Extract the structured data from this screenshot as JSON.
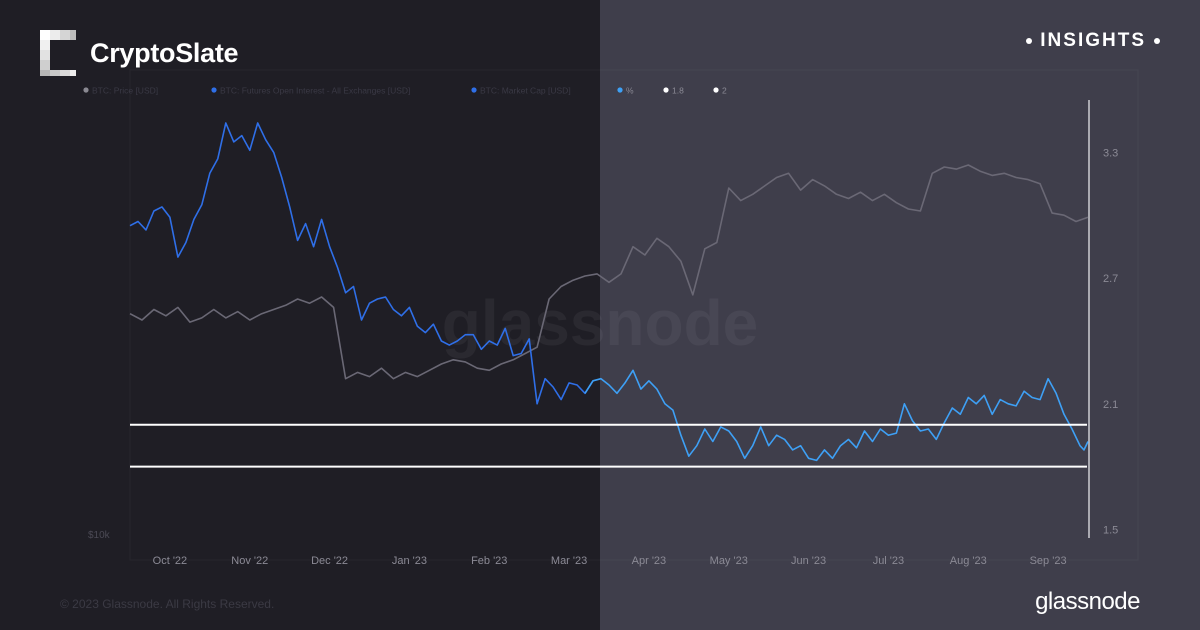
{
  "brand": {
    "name": "CryptoSlate",
    "badge": "INSIGHTS"
  },
  "footer": {
    "copyright": "© 2023 Glassnode. All Rights Reserved.",
    "logo": "glassnode"
  },
  "watermark": "glassnode",
  "colors": {
    "price": "#6a6875",
    "oi_dark": "#2f6fe8",
    "oi_light": "#3ea0f5",
    "band": "#ffffff",
    "axis_text": "#8b8a95",
    "tick_line": "#d8d8dd"
  },
  "chart_data": {
    "type": "line",
    "legend": [
      {
        "label": "BTC: Price [USD]",
        "color": "#8a8992"
      },
      {
        "label": "BTC: Futures Open Interest - All Exchanges [USD]",
        "color": "#2f6fe8"
      },
      {
        "label": "BTC: Market Cap [USD]",
        "color": "#2f6fe8"
      },
      {
        "label": "%",
        "color": "#3ea0f5"
      },
      {
        "label": "1.8",
        "color": "#ffffff"
      },
      {
        "label": "2",
        "color": "#ffffff"
      }
    ],
    "x_tick_labels": [
      "Oct '22",
      "Nov '22",
      "Dec '22",
      "Jan '23",
      "Feb '23",
      "Mar '23",
      "Apr '23",
      "May '23",
      "Jun '23",
      "Jul '23",
      "Aug '23",
      "Sep '23"
    ],
    "y_right": {
      "ticks": [
        1.5,
        2.1,
        2.7,
        3.3
      ],
      "range": [
        1.45,
        3.55
      ]
    },
    "y_left_label": "$10k",
    "horizontal_lines": [
      {
        "label": "2",
        "value": 2.0
      },
      {
        "label": "1.8",
        "value": 1.8
      }
    ],
    "x_range_months": [
      0,
      12
    ],
    "series": [
      {
        "name": "%",
        "values": [
          [
            0.0,
            2.95
          ],
          [
            0.1,
            2.97
          ],
          [
            0.2,
            2.93
          ],
          [
            0.3,
            3.02
          ],
          [
            0.4,
            3.04
          ],
          [
            0.5,
            2.99
          ],
          [
            0.6,
            2.8
          ],
          [
            0.7,
            2.87
          ],
          [
            0.8,
            2.98
          ],
          [
            0.9,
            3.05
          ],
          [
            1.0,
            3.2
          ],
          [
            1.1,
            3.27
          ],
          [
            1.2,
            3.44
          ],
          [
            1.3,
            3.35
          ],
          [
            1.4,
            3.38
          ],
          [
            1.5,
            3.31
          ],
          [
            1.6,
            3.44
          ],
          [
            1.7,
            3.36
          ],
          [
            1.8,
            3.3
          ],
          [
            1.9,
            3.18
          ],
          [
            2.0,
            3.04
          ],
          [
            2.1,
            2.88
          ],
          [
            2.2,
            2.96
          ],
          [
            2.3,
            2.85
          ],
          [
            2.4,
            2.98
          ],
          [
            2.5,
            2.85
          ],
          [
            2.6,
            2.75
          ],
          [
            2.7,
            2.63
          ],
          [
            2.8,
            2.66
          ],
          [
            2.9,
            2.5
          ],
          [
            3.0,
            2.58
          ],
          [
            3.1,
            2.6
          ],
          [
            3.2,
            2.61
          ],
          [
            3.3,
            2.55
          ],
          [
            3.4,
            2.52
          ],
          [
            3.5,
            2.56
          ],
          [
            3.6,
            2.47
          ],
          [
            3.7,
            2.44
          ],
          [
            3.8,
            2.48
          ],
          [
            3.9,
            2.4
          ],
          [
            4.0,
            2.38
          ],
          [
            4.1,
            2.4
          ],
          [
            4.2,
            2.43
          ],
          [
            4.3,
            2.43
          ],
          [
            4.4,
            2.36
          ],
          [
            4.5,
            2.4
          ],
          [
            4.6,
            2.38
          ],
          [
            4.7,
            2.46
          ],
          [
            4.8,
            2.33
          ],
          [
            4.9,
            2.34
          ],
          [
            5.0,
            2.41
          ],
          [
            5.1,
            2.1
          ],
          [
            5.2,
            2.22
          ],
          [
            5.3,
            2.18
          ],
          [
            5.4,
            2.12
          ],
          [
            5.5,
            2.2
          ],
          [
            5.6,
            2.19
          ],
          [
            5.7,
            2.15
          ],
          [
            5.8,
            2.21
          ],
          [
            5.9,
            2.22
          ],
          [
            6.0,
            2.19
          ],
          [
            6.1,
            2.15
          ],
          [
            6.2,
            2.2
          ],
          [
            6.3,
            2.26
          ],
          [
            6.4,
            2.17
          ],
          [
            6.5,
            2.21
          ],
          [
            6.6,
            2.17
          ],
          [
            6.7,
            2.1
          ],
          [
            6.8,
            2.07
          ],
          [
            6.9,
            1.95
          ],
          [
            7.0,
            1.85
          ],
          [
            7.1,
            1.9
          ],
          [
            7.2,
            1.98
          ],
          [
            7.3,
            1.92
          ],
          [
            7.4,
            1.99
          ],
          [
            7.5,
            1.97
          ],
          [
            7.6,
            1.92
          ],
          [
            7.7,
            1.84
          ],
          [
            7.8,
            1.9
          ],
          [
            7.9,
            1.99
          ],
          [
            8.0,
            1.9
          ],
          [
            8.1,
            1.95
          ],
          [
            8.2,
            1.93
          ],
          [
            8.3,
            1.88
          ],
          [
            8.4,
            1.9
          ],
          [
            8.5,
            1.84
          ],
          [
            8.6,
            1.83
          ],
          [
            8.7,
            1.88
          ],
          [
            8.8,
            1.84
          ],
          [
            8.9,
            1.9
          ],
          [
            9.0,
            1.93
          ],
          [
            9.1,
            1.89
          ],
          [
            9.2,
            1.97
          ],
          [
            9.3,
            1.92
          ],
          [
            9.4,
            1.98
          ],
          [
            9.5,
            1.95
          ],
          [
            9.6,
            1.96
          ],
          [
            9.7,
            2.1
          ],
          [
            9.8,
            2.02
          ],
          [
            9.9,
            1.97
          ],
          [
            10.0,
            1.98
          ],
          [
            10.1,
            1.93
          ],
          [
            10.2,
            2.01
          ],
          [
            10.3,
            2.08
          ],
          [
            10.4,
            2.05
          ],
          [
            10.5,
            2.13
          ],
          [
            10.6,
            2.1
          ],
          [
            10.7,
            2.14
          ],
          [
            10.8,
            2.05
          ],
          [
            10.9,
            2.12
          ],
          [
            11.0,
            2.1
          ],
          [
            11.1,
            2.09
          ],
          [
            11.2,
            2.16
          ],
          [
            11.3,
            2.13
          ],
          [
            11.4,
            2.12
          ],
          [
            11.5,
            2.22
          ],
          [
            11.6,
            2.15
          ],
          [
            11.7,
            2.05
          ],
          [
            11.8,
            1.98
          ],
          [
            11.9,
            1.9
          ],
          [
            11.95,
            1.88
          ],
          [
            12.0,
            1.92
          ]
        ]
      }
    ],
    "price_series_values": [
      [
        0.0,
        2.53
      ],
      [
        0.15,
        2.5
      ],
      [
        0.3,
        2.55
      ],
      [
        0.45,
        2.52
      ],
      [
        0.6,
        2.56
      ],
      [
        0.75,
        2.49
      ],
      [
        0.9,
        2.51
      ],
      [
        1.05,
        2.55
      ],
      [
        1.2,
        2.51
      ],
      [
        1.35,
        2.54
      ],
      [
        1.5,
        2.5
      ],
      [
        1.65,
        2.53
      ],
      [
        1.8,
        2.55
      ],
      [
        1.95,
        2.57
      ],
      [
        2.1,
        2.6
      ],
      [
        2.25,
        2.58
      ],
      [
        2.4,
        2.61
      ],
      [
        2.55,
        2.56
      ],
      [
        2.7,
        2.22
      ],
      [
        2.85,
        2.25
      ],
      [
        3.0,
        2.23
      ],
      [
        3.15,
        2.27
      ],
      [
        3.3,
        2.22
      ],
      [
        3.45,
        2.25
      ],
      [
        3.6,
        2.23
      ],
      [
        3.75,
        2.26
      ],
      [
        3.9,
        2.29
      ],
      [
        4.05,
        2.31
      ],
      [
        4.2,
        2.3
      ],
      [
        4.35,
        2.27
      ],
      [
        4.5,
        2.26
      ],
      [
        4.65,
        2.29
      ],
      [
        4.8,
        2.31
      ],
      [
        4.95,
        2.34
      ],
      [
        5.1,
        2.37
      ],
      [
        5.25,
        2.6
      ],
      [
        5.4,
        2.66
      ],
      [
        5.55,
        2.69
      ],
      [
        5.7,
        2.71
      ],
      [
        5.85,
        2.72
      ],
      [
        6.0,
        2.68
      ],
      [
        6.15,
        2.72
      ],
      [
        6.3,
        2.85
      ],
      [
        6.45,
        2.81
      ],
      [
        6.6,
        2.89
      ],
      [
        6.75,
        2.85
      ],
      [
        6.9,
        2.78
      ],
      [
        7.05,
        2.62
      ],
      [
        7.2,
        2.84
      ],
      [
        7.35,
        2.87
      ],
      [
        7.5,
        3.13
      ],
      [
        7.65,
        3.07
      ],
      [
        7.8,
        3.1
      ],
      [
        7.95,
        3.14
      ],
      [
        8.1,
        3.18
      ],
      [
        8.25,
        3.2
      ],
      [
        8.4,
        3.12
      ],
      [
        8.55,
        3.17
      ],
      [
        8.7,
        3.14
      ],
      [
        8.85,
        3.1
      ],
      [
        9.0,
        3.08
      ],
      [
        9.15,
        3.11
      ],
      [
        9.3,
        3.07
      ],
      [
        9.45,
        3.1
      ],
      [
        9.6,
        3.06
      ],
      [
        9.75,
        3.03
      ],
      [
        9.9,
        3.02
      ],
      [
        10.05,
        3.2
      ],
      [
        10.2,
        3.23
      ],
      [
        10.35,
        3.22
      ],
      [
        10.5,
        3.24
      ],
      [
        10.65,
        3.21
      ],
      [
        10.8,
        3.19
      ],
      [
        10.95,
        3.2
      ],
      [
        11.1,
        3.18
      ],
      [
        11.25,
        3.17
      ],
      [
        11.4,
        3.15
      ],
      [
        11.55,
        3.01
      ],
      [
        11.7,
        3.0
      ],
      [
        11.85,
        2.97
      ],
      [
        12.0,
        2.99
      ]
    ]
  }
}
